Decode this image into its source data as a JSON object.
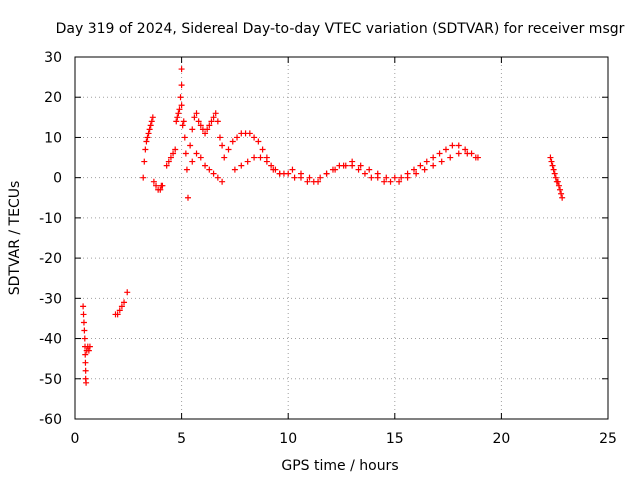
{
  "chart_data": {
    "type": "scatter",
    "title": "Day 319 of 2024, Sidereal Day-to-day VTEC variation (SDTVAR) for receiver msgr",
    "xlabel": "GPS time / hours",
    "ylabel": "SDTVAR / TECUs",
    "xlim": [
      0,
      25
    ],
    "ylim": [
      -60,
      30
    ],
    "x_ticks": [
      0,
      5,
      10,
      15,
      20,
      25
    ],
    "y_ticks": [
      -60,
      -50,
      -40,
      -30,
      -20,
      -10,
      0,
      10,
      20,
      30
    ],
    "x_tick_labels": [
      "0",
      "5",
      "10",
      "15",
      "20",
      "25"
    ],
    "y_tick_labels": [
      "-60",
      "-50",
      "-40",
      "-30",
      "-20",
      "-10",
      "0",
      "10",
      "20",
      "30"
    ],
    "grid": true,
    "marker": "+",
    "series": [
      {
        "name": "SDTVAR",
        "color": "#ff0000",
        "x": [
          0.38,
          0.4,
          0.42,
          0.44,
          0.46,
          0.47,
          0.48,
          0.49,
          0.5,
          0.5,
          0.52,
          0.55,
          0.6,
          0.65,
          0.7,
          1.9,
          2.0,
          2.1,
          2.2,
          2.3,
          2.45,
          3.2,
          3.25,
          3.3,
          3.35,
          3.4,
          3.45,
          3.5,
          3.55,
          3.6,
          3.65,
          3.7,
          3.8,
          3.9,
          4.0,
          4.05,
          4.1,
          4.3,
          4.4,
          4.5,
          4.6,
          4.7,
          4.75,
          4.8,
          4.85,
          4.9,
          4.95,
          5.0,
          5.0,
          5.0,
          5.05,
          5.1,
          5.15,
          5.2,
          5.25,
          5.3,
          5.4,
          5.5,
          5.6,
          5.7,
          5.8,
          5.9,
          6.0,
          6.1,
          6.2,
          6.3,
          6.4,
          6.5,
          6.6,
          6.7,
          6.8,
          6.9,
          5.5,
          5.7,
          5.9,
          6.1,
          6.3,
          6.5,
          6.7,
          6.9,
          7.0,
          7.2,
          7.4,
          7.6,
          7.8,
          8.0,
          8.2,
          8.4,
          8.6,
          8.8,
          9.0,
          9.2,
          9.4,
          9.6,
          9.8,
          7.5,
          7.8,
          8.1,
          8.4,
          8.7,
          9.0,
          9.3,
          9.6,
          10.0,
          10.3,
          10.6,
          10.9,
          11.2,
          11.5,
          11.8,
          12.1,
          12.4,
          12.7,
          13.0,
          13.3,
          13.6,
          13.9,
          14.2,
          14.5,
          14.8,
          10.2,
          10.6,
          11.0,
          11.4,
          11.8,
          12.2,
          12.6,
          13.0,
          13.4,
          13.8,
          14.2,
          14.6,
          15.0,
          15.3,
          15.6,
          15.9,
          16.2,
          16.5,
          16.8,
          17.1,
          17.4,
          17.7,
          18.0,
          18.3,
          18.6,
          18.9,
          15.2,
          15.6,
          16.0,
          16.4,
          16.8,
          17.2,
          17.6,
          18.0,
          18.4,
          18.8,
          22.3,
          22.35,
          22.4,
          22.45,
          22.5,
          22.55,
          22.6,
          22.65,
          22.7,
          22.75,
          22.8,
          22.85
        ],
        "y": [
          -32,
          -34,
          -36,
          -38,
          -40,
          -42,
          -44,
          -46,
          -48,
          -50,
          -51,
          -43,
          -42,
          -43,
          -42,
          -34,
          -34,
          -33,
          -32,
          -31,
          -28.5,
          0,
          4,
          7,
          9,
          10,
          11,
          12,
          13,
          14,
          15,
          -1,
          -2,
          -3,
          -3,
          -2,
          -2,
          3,
          4,
          5,
          6,
          7,
          14,
          15,
          16,
          17,
          20,
          27,
          23,
          18,
          13,
          14,
          10,
          6,
          2,
          -5,
          8,
          12,
          15,
          16,
          14,
          13,
          12,
          11,
          12,
          13,
          14,
          15,
          16,
          14,
          10,
          8,
          4,
          6,
          5,
          3,
          2,
          1,
          0,
          -1,
          5,
          7,
          9,
          10,
          11,
          11,
          11,
          10,
          9,
          7,
          5,
          3,
          2,
          1,
          1,
          2,
          3,
          4,
          5,
          5,
          4,
          2,
          1,
          1,
          0,
          0,
          -1,
          -1,
          0,
          1,
          2,
          3,
          3,
          3,
          2,
          1,
          0,
          0,
          -1,
          -1,
          2,
          1,
          0,
          -1,
          1,
          2,
          3,
          4,
          3,
          2,
          1,
          0,
          0,
          0,
          1,
          2,
          3,
          4,
          5,
          6,
          7,
          8,
          8,
          7,
          6,
          5,
          -1,
          0,
          1,
          2,
          3,
          4,
          5,
          6,
          6,
          5,
          5,
          4,
          3,
          2,
          1,
          0,
          -1,
          -1,
          -2,
          -3,
          -4,
          -5
        ]
      }
    ]
  }
}
